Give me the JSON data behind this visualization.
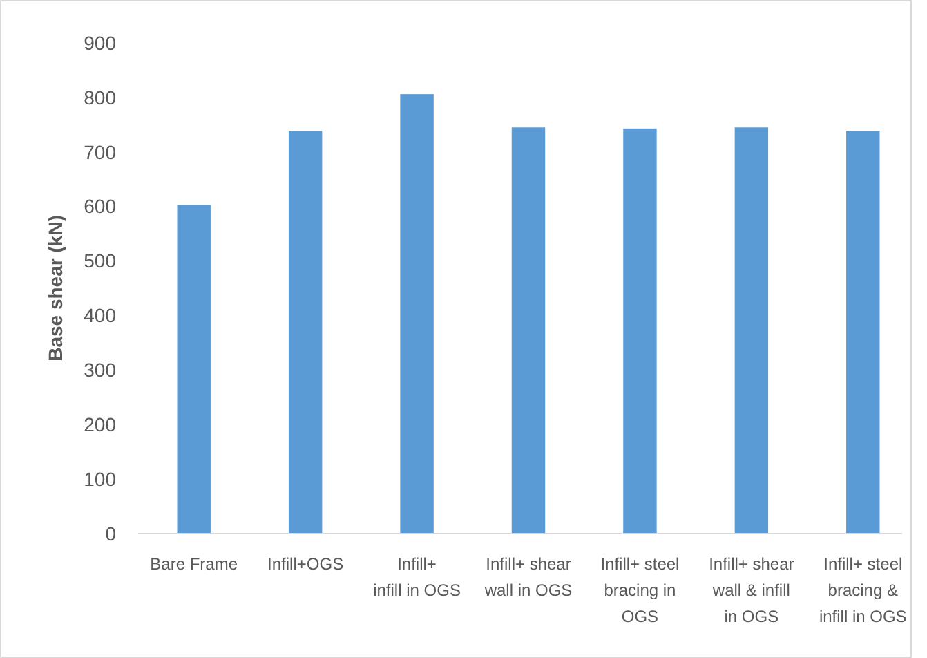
{
  "chart_data": {
    "type": "bar",
    "ylabel": "Base shear (kN)",
    "categories": [
      "Bare Frame",
      "Infill+OGS",
      "Infill+ infill in OGS",
      "Infill+ shear wall in OGS",
      "Infill+ steel bracing in OGS",
      "Infill+ shear wall & infill in OGS",
      "Infill+ steel bracing & infill in OGS"
    ],
    "values": [
      603,
      739,
      806,
      745,
      743,
      745,
      739
    ],
    "color": "#5b9bd5",
    "ylim": [
      0,
      900
    ],
    "yticks": [
      0,
      100,
      200,
      300,
      400,
      500,
      600,
      700,
      800,
      900
    ],
    "grid": false
  }
}
